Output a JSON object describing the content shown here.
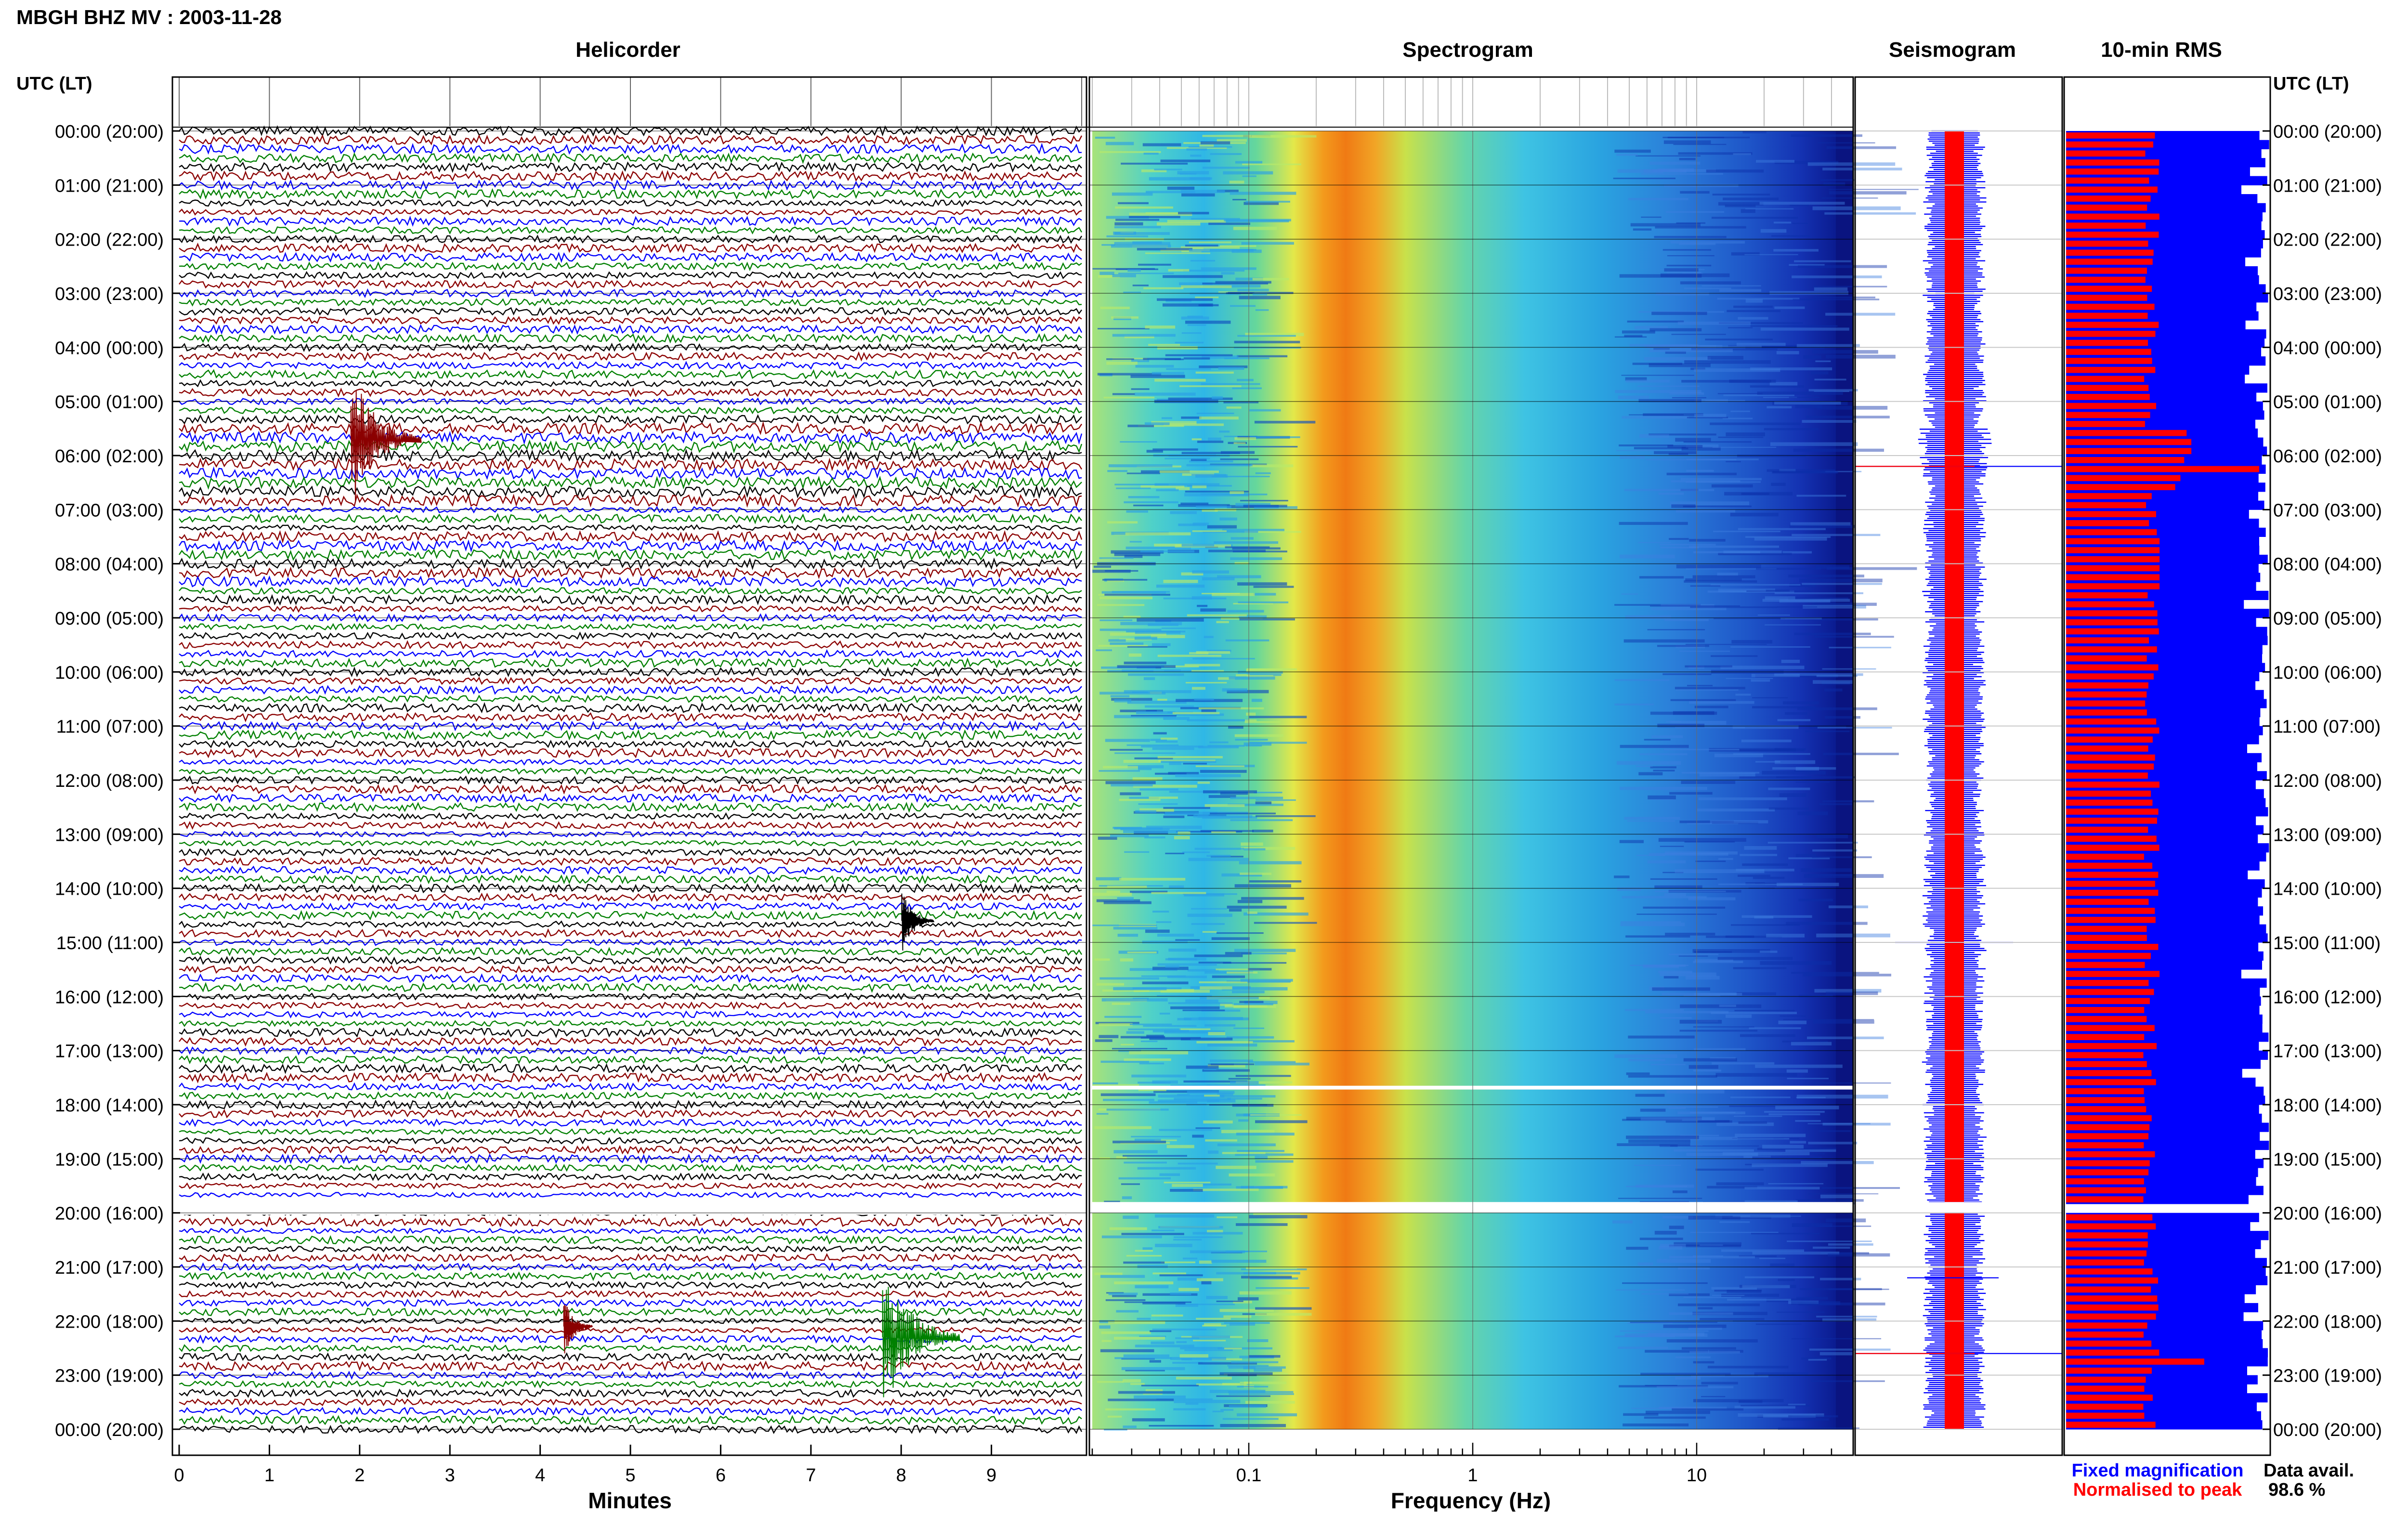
{
  "page_title": "MBGH BHZ MV : 2003-11-28",
  "time_axis_label": "UTC (LT)",
  "hour_labels": [
    "00:00 (20:00)",
    "01:00 (21:00)",
    "02:00 (22:00)",
    "03:00 (23:00)",
    "04:00 (00:00)",
    "05:00 (01:00)",
    "06:00 (02:00)",
    "07:00 (03:00)",
    "08:00 (04:00)",
    "09:00 (05:00)",
    "10:00 (06:00)",
    "11:00 (07:00)",
    "12:00 (08:00)",
    "13:00 (09:00)",
    "14:00 (10:00)",
    "15:00 (11:00)",
    "16:00 (12:00)",
    "17:00 (13:00)",
    "18:00 (14:00)",
    "19:00 (15:00)",
    "20:00 (16:00)",
    "21:00 (17:00)",
    "22:00 (18:00)",
    "23:00 (19:00)",
    "00:00 (20:00)"
  ],
  "colors": {
    "helicorder_traces": [
      "#000000",
      "#8b0000",
      "#0000ff",
      "#008000"
    ],
    "fixed": "#0000ff",
    "normalised": "#ff0000",
    "gridline": "#c8c8c8"
  },
  "chart_data": [
    {
      "type": "line",
      "title": "Helicorder",
      "xlabel": "Minutes",
      "x_ticks": [
        "0",
        "1",
        "2",
        "3",
        "4",
        "5",
        "6",
        "7",
        "8",
        "9"
      ],
      "xlim": [
        0,
        10
      ],
      "rows_per_hour": 6,
      "gap_utc_hours": [
        19.8,
        20.0
      ],
      "events": [
        {
          "utc_hour": 5.7,
          "minute": 2.0,
          "color": "#8b0000",
          "size": 1.0
        },
        {
          "utc_hour": 14.6,
          "minute": 8.05,
          "color": "#000000",
          "size": 0.45
        },
        {
          "utc_hour": 22.1,
          "minute": 4.3,
          "color": "#8b0000",
          "size": 0.4
        },
        {
          "utc_hour": 22.3,
          "minute": 7.9,
          "color": "#008000",
          "size": 1.1
        }
      ]
    },
    {
      "type": "heatmap",
      "title": "Spectrogram",
      "xlabel": "Frequency (Hz)",
      "x_scale": "log",
      "x_ticks": [
        "0.1",
        "1",
        "10"
      ],
      "xlim": [
        0.02,
        50
      ],
      "gap_utc_hours": [
        [
          17.65,
          17.72
        ],
        [
          19.8,
          20.0
        ]
      ]
    },
    {
      "type": "line",
      "title": "Seismogram",
      "gap_utc_hours": [
        19.8,
        20.0
      ]
    },
    {
      "type": "bar",
      "title": "10-min RMS",
      "legend": [
        "Fixed magnification",
        "Normalised to peak"
      ],
      "legend_position": "bottom",
      "gap_utc_hours": [
        19.8,
        20.0
      ],
      "peaks": [
        {
          "utc_hour": 6.2,
          "normalised_fraction": 0.95
        },
        {
          "utc_hour": 22.6,
          "normalised_fraction": 0.68
        }
      ]
    }
  ],
  "data_avail_label": "Data avail.",
  "data_avail_value": "98.6 %"
}
